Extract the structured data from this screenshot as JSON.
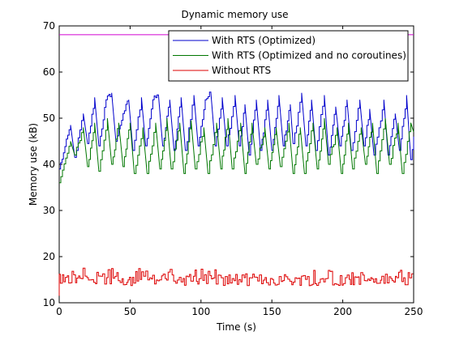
{
  "chart_data": {
    "type": "line",
    "title": "Dynamic memory use",
    "xlabel": "Time (s)",
    "ylabel": "Memory use (kB)",
    "xlim": [
      0,
      250
    ],
    "ylim": [
      10,
      70
    ],
    "xticks": [
      0,
      50,
      100,
      150,
      200,
      250
    ],
    "yticks": [
      10,
      20,
      30,
      40,
      50,
      60,
      70
    ],
    "grid": false,
    "legend_position": "top-right",
    "reference_line": {
      "y": 68.1,
      "color": "#d000d0"
    },
    "series": [
      {
        "name": "With RTS (Optimized)",
        "color": "#0000cc",
        "style": "sawtooth",
        "points": [
          [
            0,
            39
          ],
          [
            3,
            42.5
          ],
          [
            8,
            48.5
          ],
          [
            11,
            41.5
          ],
          [
            17,
            51
          ],
          [
            20,
            44.5
          ],
          [
            25,
            54.5
          ],
          [
            28,
            44
          ],
          [
            33,
            54
          ],
          [
            37,
            55.5
          ],
          [
            40,
            45
          ],
          [
            45,
            51
          ],
          [
            49,
            54
          ],
          [
            52,
            43
          ],
          [
            58,
            54.5
          ],
          [
            61,
            44
          ],
          [
            66,
            54
          ],
          [
            70,
            55
          ],
          [
            73,
            44
          ],
          [
            78,
            54
          ],
          [
            81,
            43
          ],
          [
            86,
            54.5
          ],
          [
            89,
            43
          ],
          [
            95,
            55
          ],
          [
            98,
            44
          ],
          [
            103,
            54
          ],
          [
            107,
            55.5
          ],
          [
            110,
            44
          ],
          [
            115,
            54.5
          ],
          [
            118,
            44
          ],
          [
            124,
            55
          ],
          [
            127,
            44
          ],
          [
            131,
            53
          ],
          [
            134,
            42
          ],
          [
            139,
            54
          ],
          [
            142,
            43
          ],
          [
            147,
            54
          ],
          [
            150,
            43
          ],
          [
            155,
            55
          ],
          [
            158,
            44
          ],
          [
            163,
            53
          ],
          [
            165,
            44.5
          ],
          [
            171,
            55.5
          ],
          [
            174,
            44
          ],
          [
            178,
            54
          ],
          [
            181,
            43
          ],
          [
            187,
            55
          ],
          [
            190,
            42
          ],
          [
            195,
            52.5
          ],
          [
            198,
            44
          ],
          [
            203,
            54
          ],
          [
            206,
            43
          ],
          [
            212,
            54
          ],
          [
            215,
            44
          ],
          [
            219,
            52
          ],
          [
            222,
            42
          ],
          [
            229,
            54
          ],
          [
            232,
            42
          ],
          [
            237,
            51
          ],
          [
            240,
            43
          ],
          [
            245,
            55
          ],
          [
            248,
            41
          ],
          [
            250,
            46
          ]
        ]
      },
      {
        "name": "With RTS (Optimized and no coroutines)",
        "color": "#007700",
        "style": "sawtooth",
        "points": [
          [
            0,
            36
          ],
          [
            8,
            45
          ],
          [
            11,
            42
          ],
          [
            17,
            48
          ],
          [
            20,
            39.5
          ],
          [
            25,
            49
          ],
          [
            28,
            38.5
          ],
          [
            34,
            50
          ],
          [
            37,
            40
          ],
          [
            42,
            49
          ],
          [
            45,
            39.5
          ],
          [
            50,
            49
          ],
          [
            53,
            38
          ],
          [
            59,
            48
          ],
          [
            62,
            38
          ],
          [
            68,
            49
          ],
          [
            71,
            39
          ],
          [
            76,
            50
          ],
          [
            79,
            39
          ],
          [
            85,
            49
          ],
          [
            88,
            38
          ],
          [
            93,
            49.5
          ],
          [
            96,
            39
          ],
          [
            102,
            48
          ],
          [
            105,
            38
          ],
          [
            111,
            49
          ],
          [
            114,
            39
          ],
          [
            119,
            50
          ],
          [
            122,
            39
          ],
          [
            128,
            49
          ],
          [
            131,
            38
          ],
          [
            136,
            49
          ],
          [
            139,
            40
          ],
          [
            145,
            48
          ],
          [
            148,
            39
          ],
          [
            153,
            48
          ],
          [
            156,
            39.5
          ],
          [
            162,
            49
          ],
          [
            165,
            38
          ],
          [
            170,
            48
          ],
          [
            173,
            38
          ],
          [
            179,
            49
          ],
          [
            182,
            39
          ],
          [
            187,
            50
          ],
          [
            190,
            40
          ],
          [
            196,
            48
          ],
          [
            199,
            38
          ],
          [
            204,
            49
          ],
          [
            207,
            39
          ],
          [
            213,
            48
          ],
          [
            216,
            40
          ],
          [
            221,
            49
          ],
          [
            224,
            38
          ],
          [
            230,
            50
          ],
          [
            233,
            40
          ],
          [
            239,
            49
          ],
          [
            242,
            38
          ],
          [
            248,
            49
          ],
          [
            250,
            47
          ]
        ]
      },
      {
        "name": "Without RTS",
        "color": "#dd0000",
        "style": "noise",
        "base": 15,
        "range": [
          13.5,
          17.5
        ],
        "start": 11.5
      }
    ]
  }
}
